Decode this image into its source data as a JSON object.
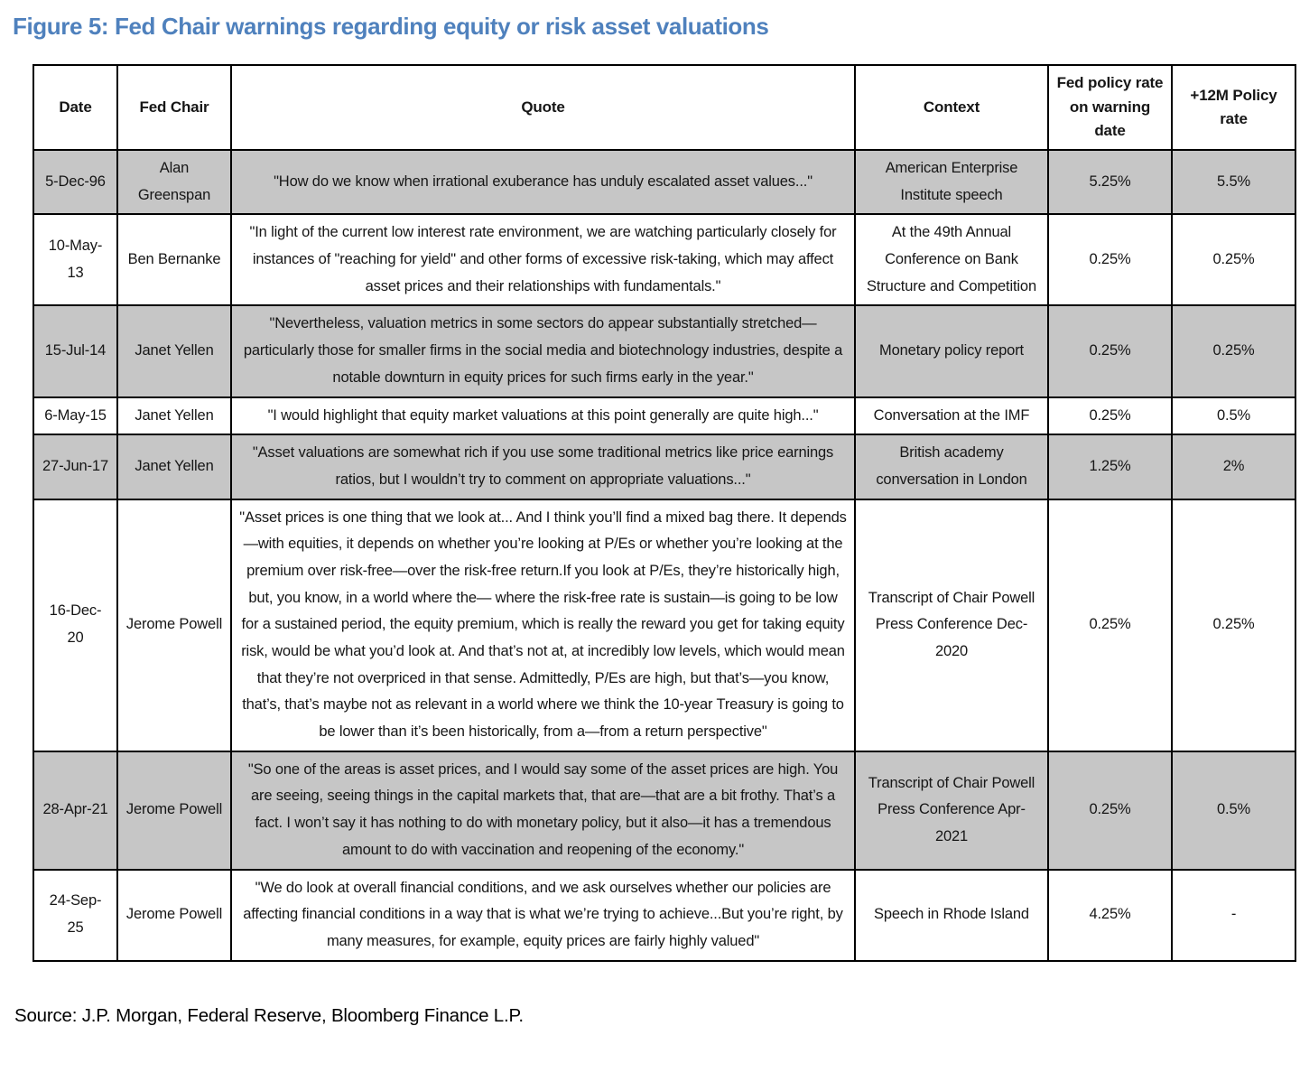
{
  "title": "Figure 5: Fed Chair warnings regarding equity or risk asset valuations",
  "source": "Source: J.P. Morgan, Federal Reserve, Bloomberg Finance L.P.",
  "colors": {
    "title_blue": "#4f81bd",
    "row_shade_gray": "#c6c6c6",
    "border_black": "#000000"
  },
  "table": {
    "columns": [
      "Date",
      "Fed Chair",
      "Quote",
      "Context",
      "Fed policy rate on warning date",
      "+12M Policy rate"
    ],
    "rows": [
      {
        "date": "5-Dec-96",
        "chair": "Alan Greenspan",
        "quote": "\"How do we know when irrational exuberance has unduly escalated asset values...\"",
        "context": "American Enterprise Institute speech",
        "rate_on_warning": "5.25%",
        "rate_12m": "5.5%",
        "shaded": true,
        "quote_align": "center"
      },
      {
        "date": "10-May-13",
        "chair": "Ben Bernanke",
        "quote": "\"In light of the current low interest rate environment, we are watching particularly closely for instances of \"reaching for yield\" and other forms of excessive risk-taking, which may affect asset prices and their relationships with fundamentals.\"",
        "context": "At the 49th Annual Conference on Bank Structure and Competition",
        "rate_on_warning": "0.25%",
        "rate_12m": "0.25%",
        "shaded": false,
        "quote_align": "center"
      },
      {
        "date": "15-Jul-14",
        "chair": "Janet Yellen",
        "quote": "\"Nevertheless, valuation metrics in some sectors do appear substantially stretched—particularly those for smaller firms in the social media and biotechnology industries, despite a notable downturn in equity prices for such firms early in the year.\"",
        "context": "Monetary policy report",
        "rate_on_warning": "0.25%",
        "rate_12m": "0.25%",
        "shaded": true,
        "quote_align": "center"
      },
      {
        "date": "6-May-15",
        "chair": "Janet Yellen",
        "quote": "\"I would highlight that equity market valuations at this point generally are quite high...\"",
        "context": "Conversation at the IMF",
        "rate_on_warning": "0.25%",
        "rate_12m": "0.5%",
        "shaded": false,
        "quote_align": "center"
      },
      {
        "date": "27-Jun-17",
        "chair": "Janet Yellen",
        "quote": "\"Asset valuations are somewhat rich if you use some traditional metrics like price earnings ratios, but I wouldn’t try to comment on appropriate valuations...\"",
        "context": "British academy conversation in London",
        "rate_on_warning": "1.25%",
        "rate_12m": "2%",
        "shaded": true,
        "quote_align": "center"
      },
      {
        "date": "16-Dec-20",
        "chair": "Jerome Powell",
        "quote": "\"Asset prices is one thing that we look at... And I think you’ll find a mixed bag there. It depends—with equities, it depends on whether you’re looking at P/Es or whether you’re looking at the premium over risk-free—over the risk-free return.If you look at P/Es, they’re historically high, but, you know, in a world where the— where the risk-free rate is sustain—is going to be low for a sustained period, the equity premium, which is really the reward you get for taking equity risk, would be what you’d look at. And that’s not at, at incredibly low levels, which would mean that they’re not overpriced in that sense. Admittedly, P/Es are high, but that’s—you know, that’s, that’s maybe not as relevant in a world where we think the 10-year Treasury is going to be lower than it’s been historically, from a—from a return perspective\"",
        "context": "Transcript of Chair Powell Press Conference Dec-2020",
        "rate_on_warning": "0.25%",
        "rate_12m": "0.25%",
        "shaded": false,
        "quote_align": "center"
      },
      {
        "date": "28-Apr-21",
        "chair": "Jerome Powell",
        "quote": "\"So one of the areas is asset prices, and I would say some of the asset prices are high. You are seeing, seeing things in the capital markets that, that are—that are a bit frothy. That’s a fact. I won’t say it has nothing to do with monetary policy, but it also—it has a tremendous amount to do with vaccination and reopening of the economy.\"",
        "context": "Transcript of Chair Powell Press Conference Apr-2021",
        "rate_on_warning": "0.25%",
        "rate_12m": "0.5%",
        "shaded": true,
        "quote_align": "left"
      },
      {
        "date": "24-Sep-25",
        "chair": "Jerome Powell",
        "quote": "\"We do look at overall financial conditions, and we ask ourselves whether our policies are affecting financial conditions in a way that is what we’re trying to achieve...But you’re right, by many measures, for example, equity prices are fairly highly valued\"",
        "context": "Speech in Rhode Island",
        "rate_on_warning": "4.25%",
        "rate_12m": "-",
        "shaded": false,
        "quote_align": "left"
      }
    ]
  }
}
